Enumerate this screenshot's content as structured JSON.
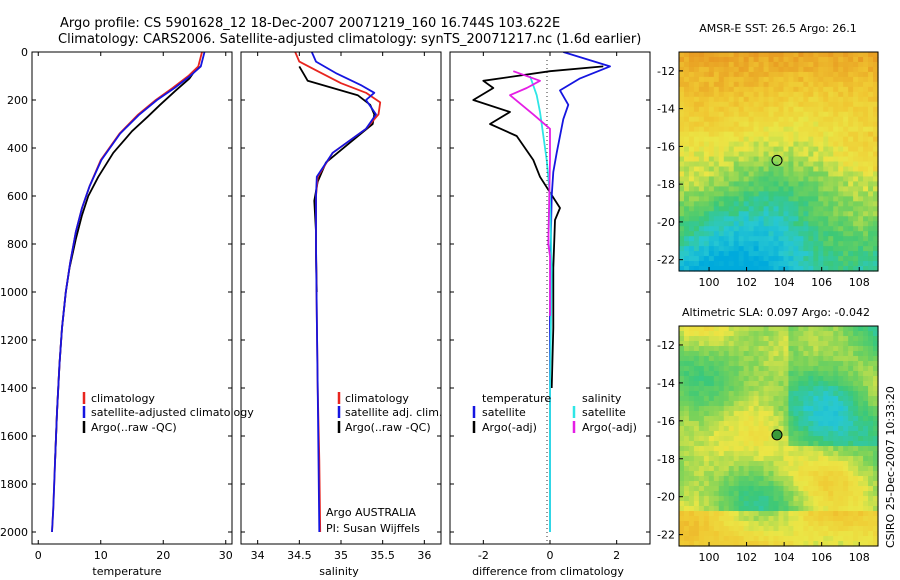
{
  "header": {
    "line1": "Argo profile: CS 5901628_12 18-Dec-2007 20071219_160 16.744S 103.622E",
    "line2": "Climatology: CARS2006. Satellite-adjusted climatology: synTS_20071217.nc (1.6d earlier)"
  },
  "footer": {
    "stamp": "CSIRO 25-Dec-2007 10:33:20"
  },
  "colors": {
    "red": "#e8251f",
    "blue": "#1515e0",
    "black": "#000000",
    "cyan": "#2ee6e6",
    "magenta": "#e51ee5"
  },
  "chart_data": [
    {
      "type": "line",
      "xlabel": "temperature",
      "xlim": [
        -1,
        31
      ],
      "ylim": [
        2050,
        0
      ],
      "xticks": [
        0,
        10,
        20,
        30
      ],
      "yticks": [
        0,
        200,
        400,
        600,
        800,
        1000,
        1200,
        1400,
        1600,
        1800,
        2000
      ],
      "legend": {
        "position": "lower-right",
        "entries": [
          "climatology",
          "satellite-adjusted climatology",
          "Argo(..raw -QC)"
        ]
      },
      "series": [
        {
          "name": "climatology",
          "color": "red",
          "x": [
            26.2,
            25.6,
            24.0,
            21.5,
            18.8,
            16.0,
            13.0,
            10.0,
            8.2,
            7.0,
            6.0,
            5.1,
            4.4,
            3.8,
            3.4,
            3.0,
            2.7,
            2.4,
            2.2
          ],
          "y": [
            0,
            60,
            100,
            150,
            200,
            260,
            340,
            450,
            560,
            650,
            750,
            880,
            1000,
            1150,
            1300,
            1500,
            1700,
            1900,
            2000
          ]
        },
        {
          "name": "satellite-adjusted climatology",
          "color": "blue",
          "x": [
            26.6,
            26.0,
            24.3,
            21.8,
            19.0,
            16.2,
            13.1,
            10.1,
            8.2,
            7.0,
            6.0,
            5.1,
            4.4,
            3.8,
            3.4,
            3.0,
            2.7,
            2.4,
            2.2
          ],
          "y": [
            0,
            60,
            100,
            150,
            200,
            260,
            340,
            450,
            560,
            650,
            750,
            880,
            1000,
            1150,
            1300,
            1500,
            1700,
            1900,
            2000
          ]
        },
        {
          "name": "Argo(..raw -QC)",
          "color": "black",
          "x": [
            25.8,
            25.0,
            24.2,
            22.0,
            19.5,
            17.5,
            15.0,
            12.0,
            9.6,
            8.0,
            7.0,
            6.0,
            5.0,
            4.4,
            3.8,
            3.4,
            3.0,
            2.7
          ],
          "y": [
            60,
            80,
            110,
            160,
            220,
            270,
            330,
            420,
            520,
            600,
            680,
            780,
            900,
            1000,
            1150,
            1300,
            1500,
            1700
          ]
        }
      ]
    },
    {
      "type": "line",
      "xlabel": "salinity",
      "xlim": [
        33.8,
        36.2
      ],
      "ylim": [
        2050,
        0
      ],
      "xticks": [
        34,
        34.5,
        35,
        35.5,
        36
      ],
      "legend": {
        "position": "lower-right",
        "entries": [
          "climatology",
          "satellite adj. clim.",
          "Argo(..raw -QC)"
        ]
      },
      "annotations": [
        "Argo AUSTRALIA",
        "PI: Susan Wijffels"
      ],
      "series": [
        {
          "name": "climatology",
          "color": "red",
          "x": [
            34.45,
            34.5,
            34.72,
            35.0,
            35.3,
            35.47,
            35.45,
            35.3,
            34.9,
            34.72,
            34.7,
            34.7,
            34.71,
            34.72,
            34.74,
            34.75
          ],
          "y": [
            0,
            40,
            80,
            130,
            170,
            210,
            260,
            320,
            420,
            520,
            600,
            800,
            1100,
            1400,
            1700,
            2000
          ]
        },
        {
          "name": "satellite adj. clim.",
          "color": "blue",
          "x": [
            34.65,
            34.7,
            34.95,
            35.25,
            35.4,
            35.3,
            35.42,
            35.3,
            34.9,
            34.71,
            34.7,
            34.7,
            34.71,
            34.72,
            34.73,
            34.74
          ],
          "y": [
            0,
            40,
            90,
            140,
            170,
            200,
            260,
            320,
            420,
            520,
            600,
            800,
            1100,
            1400,
            1700,
            2000
          ]
        },
        {
          "name": "Argo(..raw -QC)",
          "color": "black",
          "x": [
            34.5,
            34.55,
            34.6,
            34.9,
            35.2,
            35.35,
            35.4,
            35.38,
            35.1,
            34.82,
            34.72,
            34.68,
            34.7,
            34.7,
            34.71
          ],
          "y": [
            60,
            90,
            120,
            150,
            180,
            220,
            260,
            300,
            380,
            460,
            540,
            620,
            750,
            850,
            1000
          ]
        }
      ]
    },
    {
      "type": "line",
      "xlabel": "difference from climatology",
      "xlim": [
        -3.0,
        3.0
      ],
      "ylim": [
        2050,
        0
      ],
      "xticks": [
        -2,
        0,
        2
      ],
      "legend": {
        "position": "lower",
        "headers": [
          "temperature",
          "salinity"
        ],
        "entries": [
          "satellite",
          "Argo(-adj)",
          "satellite",
          "Argo(-adj)"
        ]
      },
      "series": [
        {
          "name": "satellite",
          "group": "temperature",
          "color": "blue",
          "x": [
            0.4,
            1.8,
            0.9,
            0.3,
            0.55,
            0.4,
            0.3,
            0.2,
            0.1,
            0.05,
            0.02,
            0.0,
            0.0,
            0.0,
            0.0
          ],
          "y": [
            0,
            60,
            110,
            160,
            220,
            280,
            350,
            420,
            500,
            600,
            800,
            1100,
            1400,
            1700,
            2000
          ]
        },
        {
          "name": "Argo(-adj)",
          "group": "temperature",
          "color": "black",
          "x": [
            1.6,
            0.0,
            -1.0,
            -2.0,
            -1.7,
            -2.3,
            -1.2,
            -1.8,
            -1.0,
            -0.5,
            -0.3,
            0.3,
            0.15,
            0.1,
            0.1,
            0.05
          ],
          "y": [
            60,
            80,
            100,
            120,
            150,
            200,
            250,
            300,
            350,
            450,
            520,
            650,
            700,
            900,
            1150,
            1400
          ]
        },
        {
          "name": "satellite",
          "group": "salinity",
          "color": "cyan",
          "x": [
            -0.6,
            -0.4,
            -0.3,
            -0.25,
            -0.1,
            0.0,
            0.05,
            0.0,
            0.0
          ],
          "y": [
            100,
            180,
            250,
            300,
            450,
            600,
            900,
            1400,
            2000
          ]
        },
        {
          "name": "Argo(-adj)",
          "group": "salinity",
          "color": "magenta",
          "x": [
            -1.1,
            -0.3,
            -0.7,
            -1.2,
            -0.5,
            0.0,
            0.0,
            -0.05,
            0.0,
            0.0
          ],
          "y": [
            80,
            120,
            150,
            180,
            260,
            320,
            450,
            800,
            850,
            1100
          ]
        }
      ]
    },
    {
      "type": "heatmap",
      "title": "AMSR-E SST: 26.5 Argo: 26.1",
      "xlim": [
        98.4,
        109.0
      ],
      "ylim": [
        -22.6,
        -11.0
      ],
      "xticks": [
        100,
        102,
        104,
        106,
        108
      ],
      "yticks": [
        -12,
        -14,
        -16,
        -18,
        -20,
        -22
      ],
      "marker": {
        "lon": 103.622,
        "lat": -16.744
      }
    },
    {
      "type": "heatmap",
      "title": "Altimetric SLA: 0.097 Argo: -0.042",
      "xlim": [
        98.4,
        109.0
      ],
      "ylim": [
        -22.6,
        -11.0
      ],
      "xticks": [
        100,
        102,
        104,
        106,
        108
      ],
      "yticks": [
        -12,
        -14,
        -16,
        -18,
        -20,
        -22
      ],
      "marker": {
        "lon": 103.622,
        "lat": -16.744
      }
    }
  ]
}
